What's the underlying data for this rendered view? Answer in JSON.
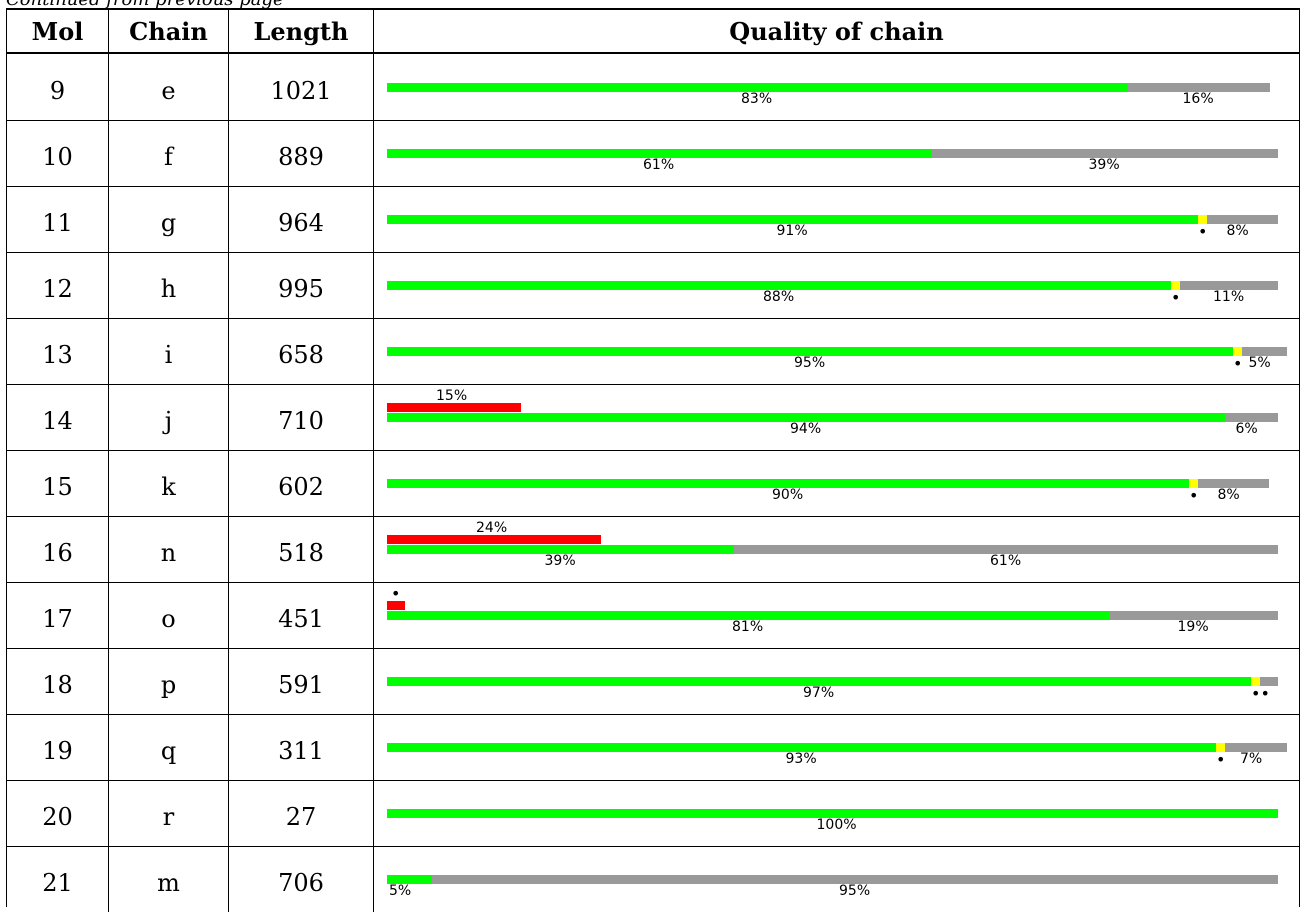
{
  "caption": "Continued from previous page",
  "headers": {
    "mol": "Mol",
    "chain": "Chain",
    "length": "Length",
    "quality": "Quality of chain"
  },
  "colors": {
    "good": "#00ff00",
    "outlier": "#999999",
    "minor": "#ffff00",
    "bad": "#ff0000"
  },
  "rows": [
    {
      "mol": "9",
      "chain": "e",
      "length": "1021",
      "green_pct": "83%",
      "grey_pct": "16%",
      "red_pct": "",
      "quality": {
        "green": 0.83,
        "yellow": 0.0,
        "grey": 0.16,
        "red": 0.0,
        "dot_yellow": false,
        "dot_red": false,
        "double_dot": false
      }
    },
    {
      "mol": "10",
      "chain": "f",
      "length": "889",
      "green_pct": "61%",
      "grey_pct": "39%",
      "red_pct": "",
      "quality": {
        "green": 0.61,
        "yellow": 0.0,
        "grey": 0.39,
        "red": 0.0,
        "dot_yellow": false,
        "dot_red": false,
        "double_dot": false
      }
    },
    {
      "mol": "11",
      "chain": "g",
      "length": "964",
      "green_pct": "91%",
      "grey_pct": "8%",
      "red_pct": "",
      "quality": {
        "green": 0.91,
        "yellow": 0.01,
        "grey": 0.08,
        "red": 0.0,
        "dot_yellow": true,
        "dot_red": false,
        "double_dot": false
      }
    },
    {
      "mol": "12",
      "chain": "h",
      "length": "995",
      "green_pct": "88%",
      "grey_pct": "11%",
      "red_pct": "",
      "quality": {
        "green": 0.88,
        "yellow": 0.01,
        "grey": 0.11,
        "red": 0.0,
        "dot_yellow": true,
        "dot_red": false,
        "double_dot": false
      }
    },
    {
      "mol": "13",
      "chain": "i",
      "length": "658",
      "green_pct": "95%",
      "grey_pct": "5%",
      "red_pct": "",
      "quality": {
        "green": 0.95,
        "yellow": 0.01,
        "grey": 0.05,
        "red": 0.0,
        "dot_yellow": true,
        "dot_red": false,
        "double_dot": false
      }
    },
    {
      "mol": "14",
      "chain": "j",
      "length": "710",
      "green_pct": "94%",
      "grey_pct": "6%",
      "red_pct": "15%",
      "quality": {
        "green": 0.94,
        "yellow": 0.0,
        "grey": 0.06,
        "red": 0.15,
        "dot_yellow": false,
        "dot_red": false,
        "double_dot": false
      }
    },
    {
      "mol": "15",
      "chain": "k",
      "length": "602",
      "green_pct": "90%",
      "grey_pct": "8%",
      "red_pct": "",
      "quality": {
        "green": 0.9,
        "yellow": 0.01,
        "grey": 0.08,
        "red": 0.0,
        "dot_yellow": true,
        "dot_red": false,
        "double_dot": false
      }
    },
    {
      "mol": "16",
      "chain": "n",
      "length": "518",
      "green_pct": "39%",
      "grey_pct": "61%",
      "red_pct": "24%",
      "quality": {
        "green": 0.39,
        "yellow": 0.0,
        "grey": 0.61,
        "red": 0.24,
        "dot_yellow": false,
        "dot_red": false,
        "double_dot": false
      }
    },
    {
      "mol": "17",
      "chain": "o",
      "length": "451",
      "green_pct": "81%",
      "grey_pct": "19%",
      "red_pct": "",
      "quality": {
        "green": 0.81,
        "yellow": 0.0,
        "grey": 0.19,
        "red": 0.02,
        "dot_yellow": false,
        "dot_red": true,
        "double_dot": false
      }
    },
    {
      "mol": "18",
      "chain": "p",
      "length": "591",
      "green_pct": "97%",
      "grey_pct": "",
      "red_pct": "",
      "quality": {
        "green": 0.97,
        "yellow": 0.01,
        "grey": 0.02,
        "red": 0.0,
        "dot_yellow": true,
        "dot_red": false,
        "double_dot": true
      }
    },
    {
      "mol": "19",
      "chain": "q",
      "length": "311",
      "green_pct": "93%",
      "grey_pct": "7%",
      "red_pct": "",
      "quality": {
        "green": 0.93,
        "yellow": 0.01,
        "grey": 0.07,
        "red": 0.0,
        "dot_yellow": true,
        "dot_red": false,
        "double_dot": false
      }
    },
    {
      "mol": "20",
      "chain": "r",
      "length": "27",
      "green_pct": "100%",
      "grey_pct": "",
      "red_pct": "",
      "quality": {
        "green": 1.0,
        "yellow": 0.0,
        "grey": 0.0,
        "red": 0.0,
        "dot_yellow": false,
        "dot_red": false,
        "double_dot": false
      }
    },
    {
      "mol": "21",
      "chain": "m",
      "length": "706",
      "green_pct": "5%",
      "grey_pct": "95%",
      "red_pct": "",
      "quality": {
        "green": 0.05,
        "yellow": 0.0,
        "grey": 0.95,
        "red": 0.0,
        "dot_yellow": false,
        "dot_red": false,
        "double_dot": false
      }
    }
  ]
}
